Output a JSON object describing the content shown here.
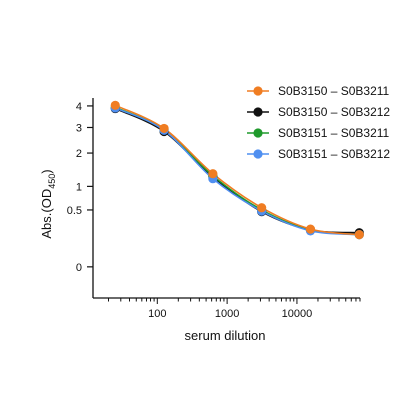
{
  "chart_data": {
    "type": "line",
    "xlabel": "serum dilution",
    "ylabel_main": "Abs.(OD",
    "ylabel_sub": "450",
    "ylabel_close": ")",
    "x_scale": "log",
    "xlim": [
      12,
      80000
    ],
    "ylim": [
      -0.15,
      4.3
    ],
    "x_ticks": [
      100,
      1000,
      10000
    ],
    "x_tick_labels": [
      "100",
      "1000",
      "10000"
    ],
    "y_ticks": [
      0,
      0.5,
      1,
      2,
      3,
      4
    ],
    "y_tick_labels": [
      "0",
      "0.5",
      "1",
      "2",
      "3",
      "4"
    ],
    "legend_position": "top-right",
    "x": [
      25,
      125,
      625,
      3125,
      15625,
      78125
    ],
    "series": [
      {
        "name": "S0B3150 – S0B3211",
        "color": "#f07d22",
        "values": [
          4.03,
          2.96,
          1.34,
          0.54,
          0.22,
          0.16
        ]
      },
      {
        "name": "S0B3150 – S0B3212",
        "color": "#111111",
        "values": [
          3.87,
          2.83,
          1.25,
          0.47,
          0.21,
          0.18
        ]
      },
      {
        "name": "S0B3151 – S0B3211",
        "color": "#1f9a2c",
        "values": [
          3.93,
          2.9,
          1.28,
          0.5,
          0.21,
          0.16
        ]
      },
      {
        "name": "S0B3151 – S0B3212",
        "color": "#4f8ff0",
        "values": [
          3.9,
          2.88,
          1.2,
          0.48,
          0.2,
          0.16
        ]
      }
    ]
  }
}
